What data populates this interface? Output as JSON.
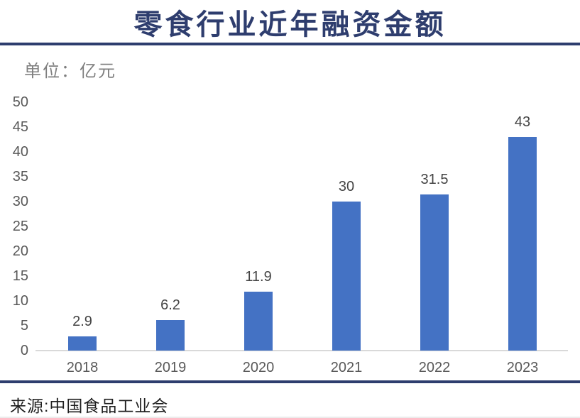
{
  "title": "零食行业近年融资金额",
  "unit_label": "单位：亿元",
  "source": "来源:中国食品工业会",
  "colors": {
    "accent_navy": "#2e3d6e",
    "bar_blue": "#4472c4",
    "tick_text": "#595959",
    "unit_text": "#7f7f7f",
    "value_label_text": "#444444",
    "axis_line": "#d9d9d9",
    "source_text": "#1f1f1f"
  },
  "chart_data": {
    "type": "bar",
    "title": "零食行业近年融资金额",
    "unit": "亿元",
    "categories": [
      "2018",
      "2019",
      "2020",
      "2021",
      "2022",
      "2023"
    ],
    "values": [
      2.9,
      6.2,
      11.9,
      30,
      31.5,
      43
    ],
    "data_labels": [
      "2.9",
      "6.2",
      "11.9",
      "30",
      "31.5",
      "43"
    ],
    "xlabel": "",
    "ylabel": "单位：亿元",
    "ylim": [
      0,
      50
    ],
    "yticks": [
      0,
      5,
      10,
      15,
      20,
      25,
      30,
      35,
      40,
      45,
      50
    ],
    "grid": false,
    "legend": false,
    "bar_color": "#4472c4"
  }
}
